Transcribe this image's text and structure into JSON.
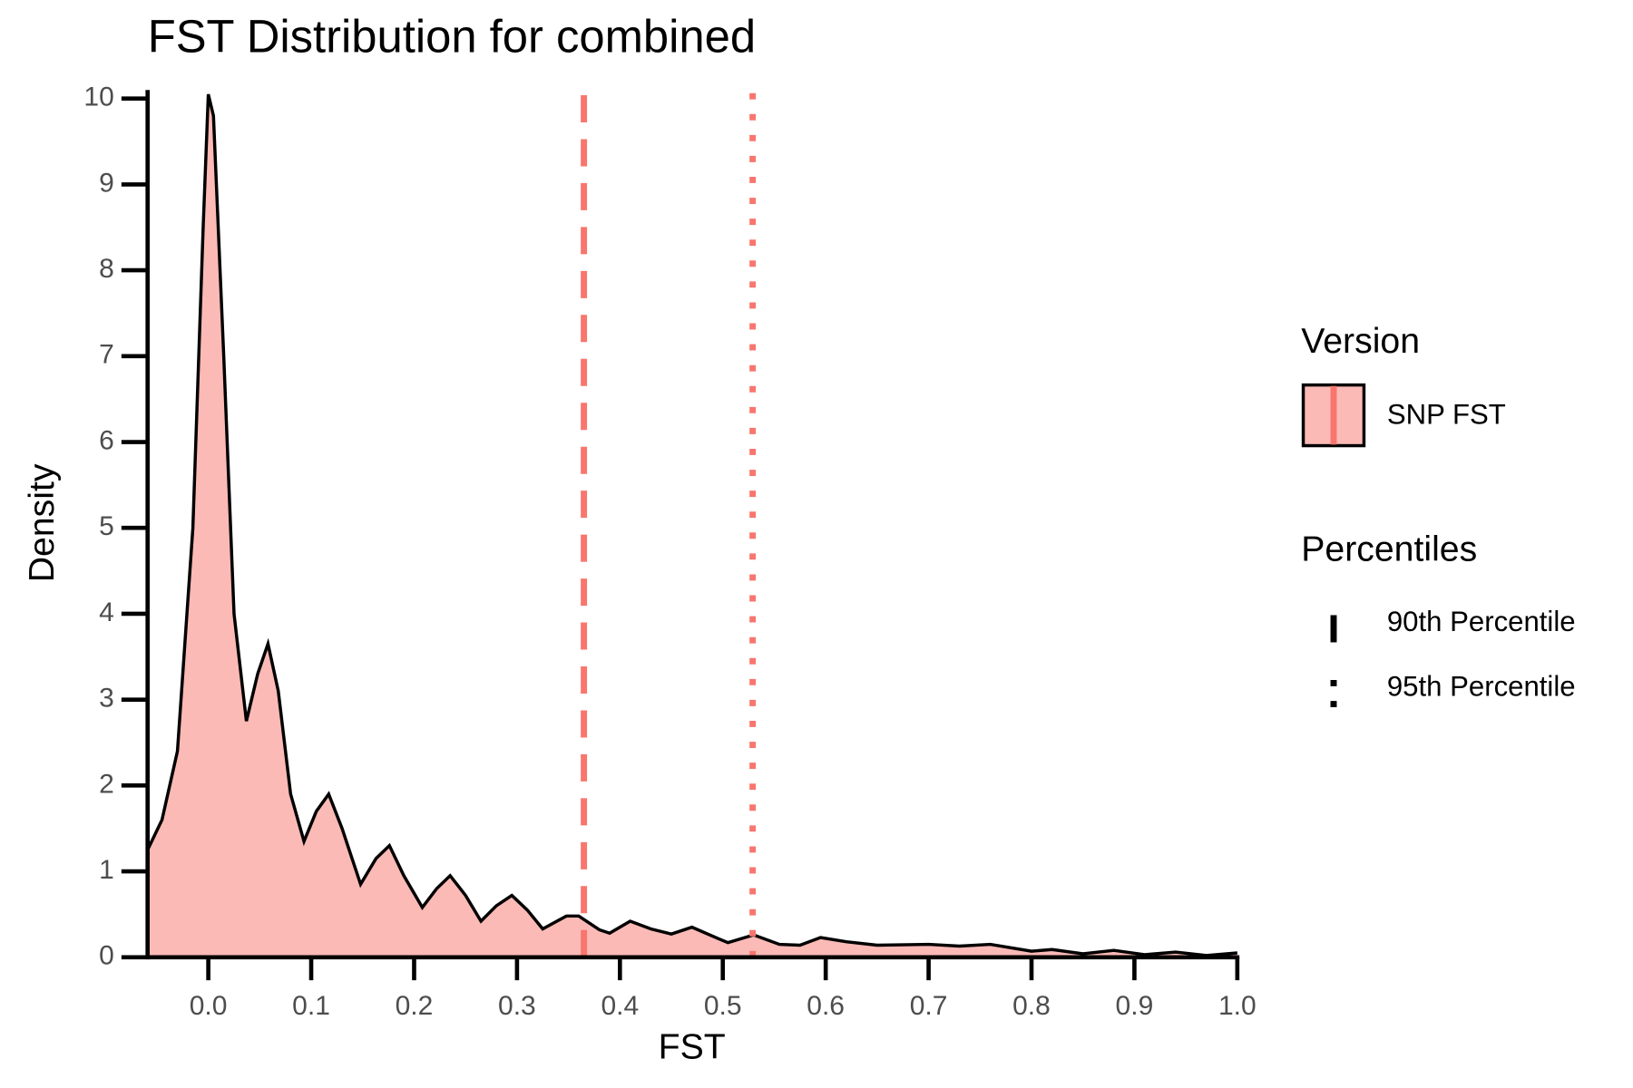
{
  "chart_data": {
    "type": "area",
    "title": "FST Distribution for combined",
    "x_label": "FST",
    "y_label": "Density",
    "x": [
      -0.059,
      -0.045,
      -0.03,
      -0.015,
      -0.005,
      0,
      0.005,
      0.015,
      0.025,
      0.037,
      0.048,
      0.058,
      0.068,
      0.08,
      0.093,
      0.105,
      0.117,
      0.13,
      0.148,
      0.163,
      0.176,
      0.19,
      0.208,
      0.222,
      0.235,
      0.25,
      0.265,
      0.28,
      0.295,
      0.31,
      0.325,
      0.348,
      0.36,
      0.38,
      0.39,
      0.41,
      0.43,
      0.45,
      0.47,
      0.495,
      0.505,
      0.53,
      0.555,
      0.575,
      0.595,
      0.62,
      0.65,
      0.7,
      0.73,
      0.76,
      0.8,
      0.82,
      0.85,
      0.88,
      0.91,
      0.94,
      0.97,
      1.0
    ],
    "series": [
      {
        "name": "SNP FST",
        "color": "#f8766d",
        "fill_opacity": 0.5,
        "line_color": "#000000",
        "values": [
          1.25,
          1.6,
          2.4,
          5,
          8.5,
          10.05,
          9.8,
          7,
          4,
          2.75,
          3.3,
          3.65,
          3.1,
          1.9,
          1.35,
          1.7,
          1.9,
          1.5,
          0.85,
          1.15,
          1.3,
          0.95,
          0.58,
          0.8,
          0.95,
          0.72,
          0.42,
          0.6,
          0.72,
          0.55,
          0.33,
          0.48,
          0.48,
          0.32,
          0.28,
          0.42,
          0.33,
          0.27,
          0.35,
          0.22,
          0.17,
          0.26,
          0.15,
          0.14,
          0.23,
          0.18,
          0.14,
          0.15,
          0.13,
          0.15,
          0.07,
          0.09,
          0.04,
          0.08,
          0.03,
          0.06,
          0.02,
          0.05
        ]
      }
    ],
    "legend_title": "Version",
    "vlines_title": "Percentiles",
    "vlines": [
      {
        "name": "90th Percentile",
        "value": 0.365,
        "style": "dashed",
        "color": "#f8766d"
      },
      {
        "name": "95th Percentile",
        "value": 0.529,
        "style": "dotted",
        "color": "#f8766d"
      }
    ],
    "xlim": [
      -0.059,
      1.0
    ],
    "ylim": [
      0,
      10.1
    ],
    "xticks": [
      {
        "value": 0,
        "label": "0.0"
      },
      0.1,
      0.2,
      0.3,
      0.4,
      0.5,
      0.6,
      0.7,
      0.8,
      0.9,
      {
        "value": 1,
        "label": "1.0"
      }
    ],
    "yticks": [
      0,
      1,
      2,
      3,
      4,
      5,
      6,
      7,
      8,
      9,
      10
    ]
  }
}
